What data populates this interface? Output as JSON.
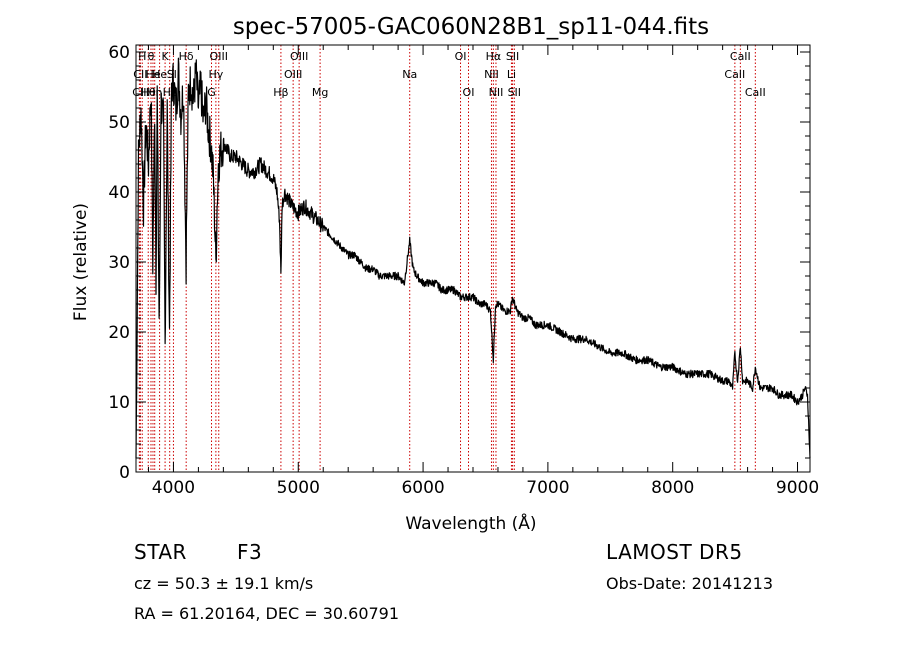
{
  "chart_data": {
    "type": "line",
    "title": "spec-57005-GAC060N28B1_sp11-044.fits",
    "xlabel": "Wavelength (Å)",
    "ylabel": "Flux (relative)",
    "xlim": [
      3700,
      9100
    ],
    "ylim": [
      0,
      61
    ],
    "x_ticks": [
      4000,
      5000,
      6000,
      7000,
      8000,
      9000
    ],
    "y_ticks": [
      0,
      10,
      20,
      30,
      40,
      50,
      60
    ],
    "grid": false,
    "legend": "none",
    "series": [
      {
        "x": [
          3700,
          3720,
          3740,
          3760,
          3780,
          3800,
          3820,
          3835,
          3850,
          3860,
          3870,
          3885,
          3889,
          3900,
          3920,
          3933,
          3950,
          3968,
          3985,
          4000,
          4020,
          4040,
          4060,
          4080,
          4101,
          4120,
          4140,
          4160,
          4180,
          4200,
          4220,
          4240,
          4260,
          4280,
          4300,
          4320,
          4340,
          4350,
          4360,
          4380,
          4400,
          4430,
          4460,
          4500,
          4550,
          4600,
          4650,
          4700,
          4750,
          4800,
          4830,
          4850,
          4861,
          4870,
          4890,
          4920,
          4950,
          5000,
          5050,
          5100,
          5150,
          5200,
          5250,
          5300,
          5350,
          5400,
          5450,
          5500,
          5550,
          5600,
          5650,
          5700,
          5750,
          5800,
          5850,
          5893,
          5920,
          5950,
          6000,
          6050,
          6100,
          6150,
          6200,
          6250,
          6300,
          6350,
          6400,
          6450,
          6500,
          6540,
          6563,
          6580,
          6600,
          6650,
          6700,
          6716,
          6750,
          6800,
          6850,
          6900,
          6950,
          7000,
          7100,
          7200,
          7300,
          7400,
          7500,
          7600,
          7700,
          7800,
          7900,
          8000,
          8100,
          8200,
          8300,
          8400,
          8450,
          8480,
          8498,
          8520,
          8542,
          8560,
          8600,
          8640,
          8662,
          8700,
          8750,
          8800,
          8850,
          8900,
          8950,
          9000,
          9040,
          9060,
          9080,
          9100
        ],
        "y": [
          2,
          45,
          52,
          38,
          50,
          44,
          55,
          30,
          52,
          28,
          54,
          22,
          25,
          53,
          50,
          18,
          52,
          20,
          55,
          56,
          52,
          57,
          51,
          55,
          30,
          54,
          56,
          53,
          57,
          52,
          55,
          50,
          53,
          49,
          47,
          42,
          30,
          38,
          44,
          46,
          47,
          46,
          45,
          45,
          44,
          43,
          43,
          44,
          43,
          42,
          40,
          36,
          28,
          38,
          40,
          39,
          38,
          37,
          38,
          37,
          36,
          35,
          34,
          33,
          32,
          31,
          31,
          30,
          29,
          29,
          28,
          28,
          28,
          28,
          27,
          33,
          29,
          28,
          27,
          27,
          27,
          26,
          26,
          26,
          25,
          25,
          25,
          24,
          24,
          23,
          16,
          24,
          24,
          23,
          23,
          25,
          23,
          22,
          22,
          21,
          21,
          21,
          20,
          19,
          19,
          18,
          17,
          17,
          16,
          16,
          15,
          15,
          14,
          14,
          14,
          13,
          13,
          12,
          17,
          13,
          18,
          13,
          13,
          12,
          15,
          12,
          12,
          12,
          11,
          11,
          11,
          10,
          11,
          12,
          11,
          2
        ]
      }
    ],
    "line_marks": [
      {
        "label": "CII",
        "x": 3727,
        "row": 2
      },
      {
        "label": "CII",
        "x": 3735,
        "row": 1
      },
      {
        "label": "H",
        "x": 3750,
        "row": 0
      },
      {
        "label": "Hθ",
        "x": 3798,
        "row": 2
      },
      {
        "label": "θ",
        "x": 3820,
        "row": 0
      },
      {
        "label": "He",
        "x": 3836,
        "row": 1
      },
      {
        "label": "Hη",
        "x": 3850,
        "row": 2
      },
      {
        "label": "He",
        "x": 3889,
        "row": 1
      },
      {
        "label": "K",
        "x": 3933,
        "row": 0
      },
      {
        "label": "Hε",
        "x": 3970,
        "row": 2
      },
      {
        "label": "SII",
        "x": 4000,
        "row": 1
      },
      {
        "label": "Hδ",
        "x": 4102,
        "row": 0
      },
      {
        "label": "Hγ",
        "x": 4340,
        "row": 1
      },
      {
        "label": "OIII",
        "x": 4363,
        "row": 0
      },
      {
        "label": "G",
        "x": 4305,
        "row": 2
      },
      {
        "label": "Hβ",
        "x": 4861,
        "row": 2
      },
      {
        "label": "OIII",
        "x": 4959,
        "row": 1
      },
      {
        "label": "OIII",
        "x": 5007,
        "row": 0
      },
      {
        "label": "Mg",
        "x": 5175,
        "row": 2
      },
      {
        "label": "Na",
        "x": 5893,
        "row": 1
      },
      {
        "label": "OI",
        "x": 6300,
        "row": 0
      },
      {
        "label": "OI",
        "x": 6364,
        "row": 2
      },
      {
        "label": "Hα",
        "x": 6563,
        "row": 0
      },
      {
        "label": "NII",
        "x": 6548,
        "row": 1
      },
      {
        "label": "NII",
        "x": 6584,
        "row": 2
      },
      {
        "label": "SII",
        "x": 6717,
        "row": 0
      },
      {
        "label": "Li",
        "x": 6708,
        "row": 1
      },
      {
        "label": "SII",
        "x": 6731,
        "row": 2
      },
      {
        "label": "CaII",
        "x": 8498,
        "row": 1
      },
      {
        "label": "CaII",
        "x": 8542,
        "row": 0
      },
      {
        "label": "CaII",
        "x": 8662,
        "row": 2
      }
    ]
  },
  "info": {
    "object_class": "STAR",
    "subclass": "F3",
    "survey": "LAMOST DR5",
    "velocity": "cz = 50.3 ± 19.1 km/s",
    "obs_date": "Obs-Date: 20141213",
    "coords": "RA =  61.20164, DEC =  30.60791"
  }
}
